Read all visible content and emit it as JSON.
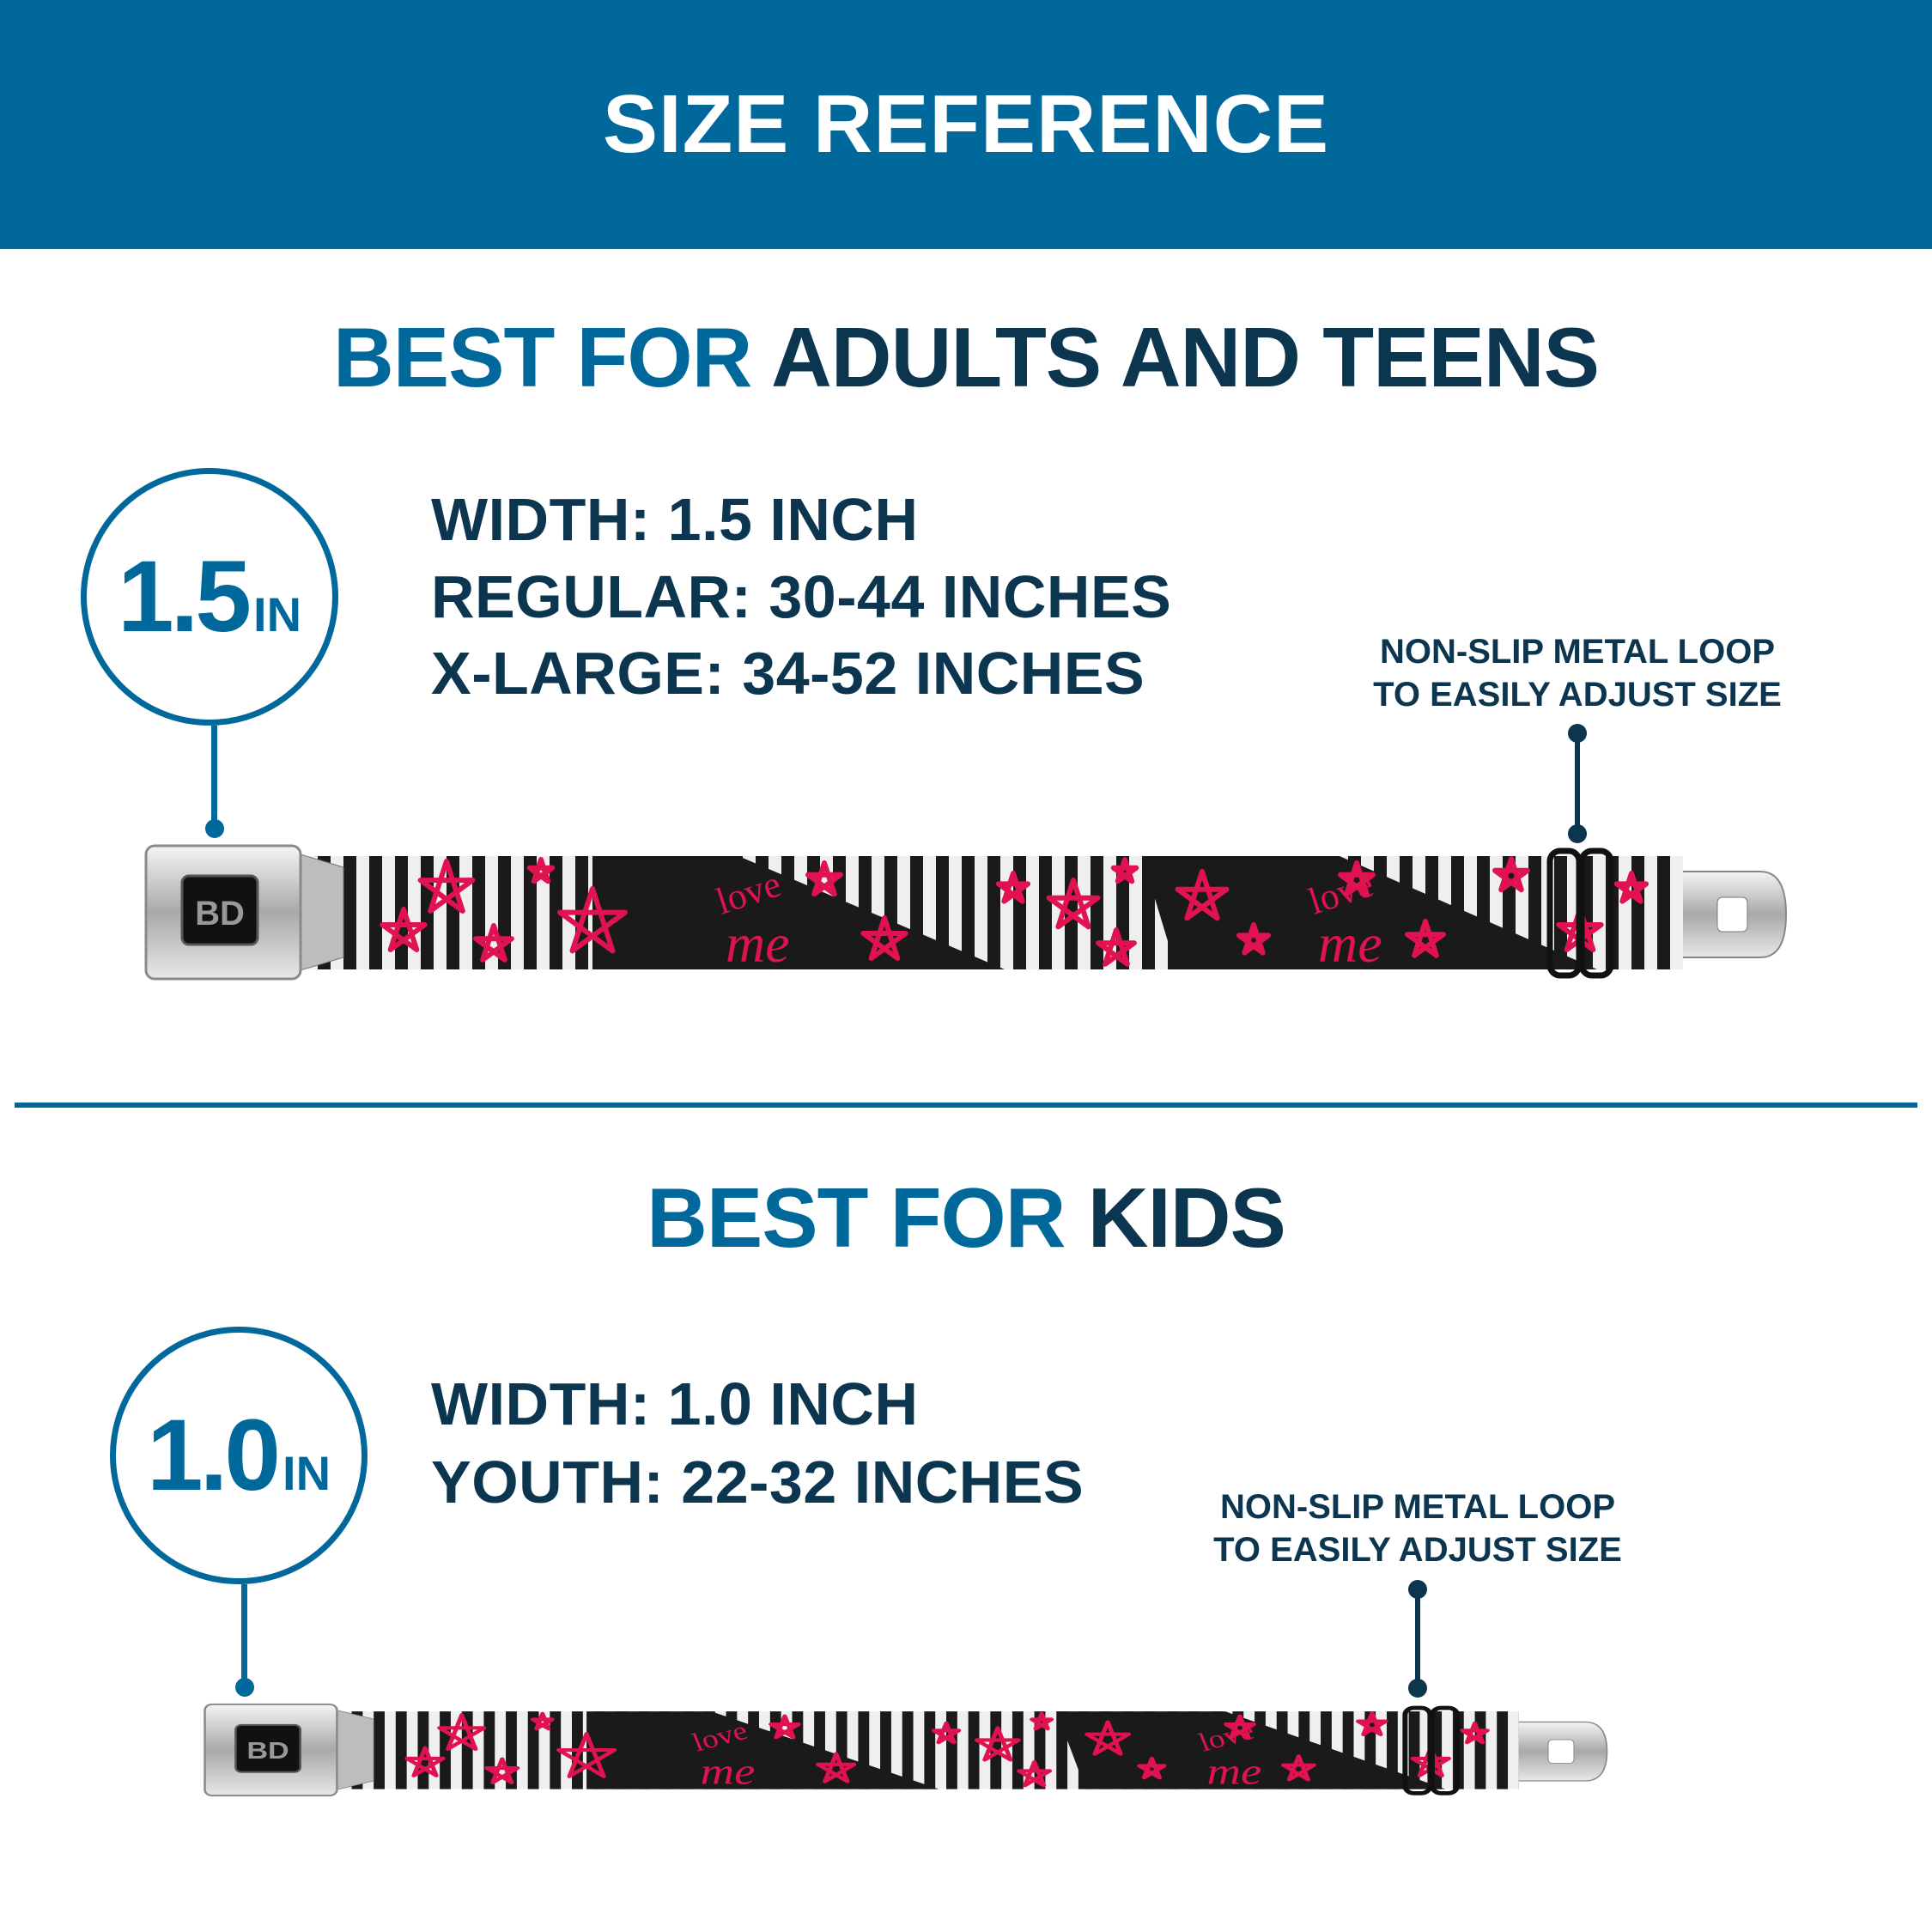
{
  "header": {
    "title": "SIZE REFERENCE"
  },
  "colors": {
    "brand_blue": "#00689a",
    "navy": "#0c3550",
    "belt_pink": "#e0124f"
  },
  "adults": {
    "title_prefix": "BEST FOR",
    "title_rest": "ADULTS AND TEENS",
    "badge": {
      "value": "1.5",
      "unit": "IN"
    },
    "specs": [
      "WIDTH: 1.5 INCH",
      "REGULAR: 30-44 INCHES",
      "X-LARGE: 34-52 INCHES"
    ],
    "callout": [
      "NON-SLIP METAL LOOP",
      "TO EASILY ADJUST SIZE"
    ],
    "belt_text": {
      "love": "love",
      "me": "me"
    }
  },
  "kids": {
    "title_prefix": "BEST FOR",
    "title_rest": "KIDS",
    "badge": {
      "value": "1.0",
      "unit": "IN"
    },
    "specs": [
      "WIDTH: 1.0 INCH",
      "YOUTH: 22-32 INCHES"
    ],
    "callout": [
      "NON-SLIP METAL LOOP",
      "TO EASILY ADJUST SIZE"
    ],
    "belt_text": {
      "love": "love",
      "me": "me"
    }
  },
  "buckle_logo": "BD"
}
